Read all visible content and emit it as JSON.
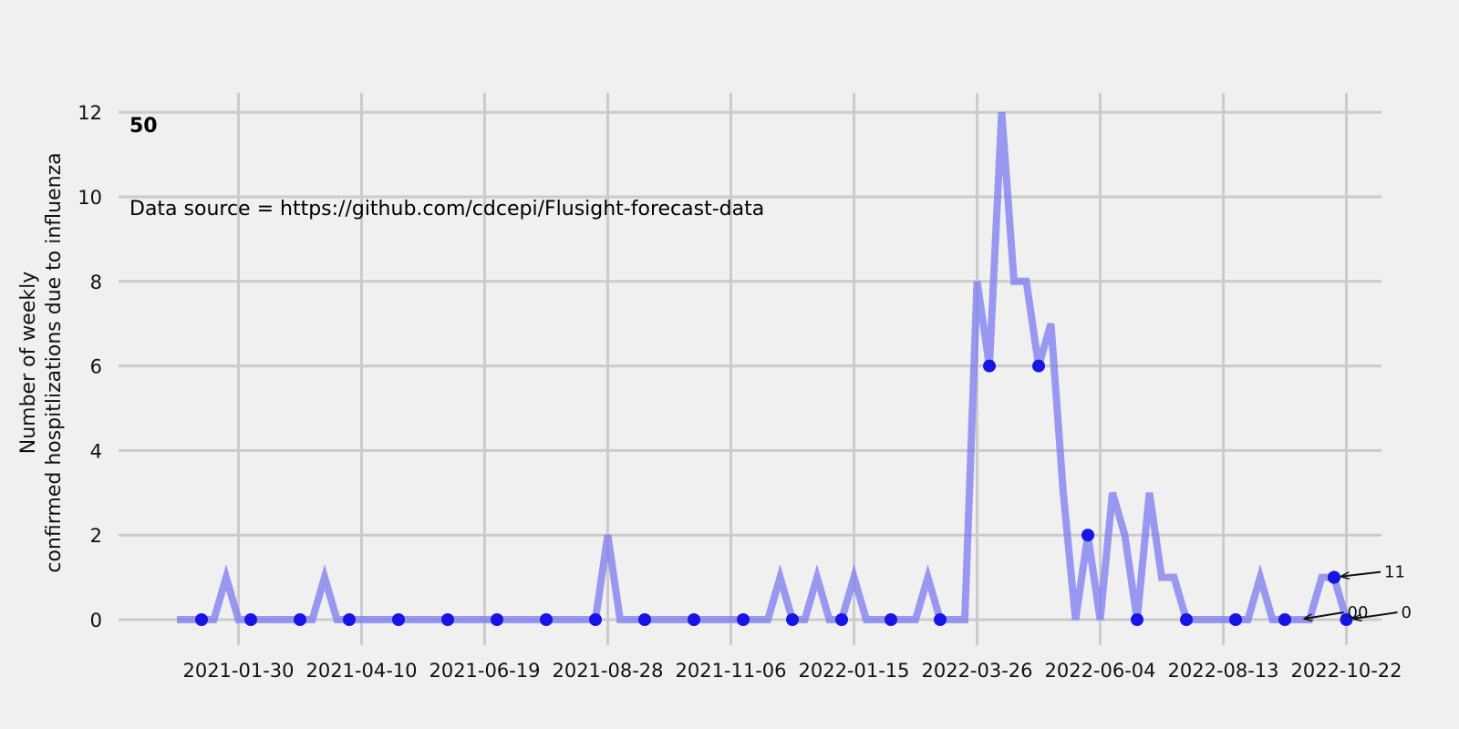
{
  "chart_data": {
    "type": "line",
    "panel_label": "50",
    "source_note": "Data source = https://github.com/cdcepi/Flusight-forecast-data",
    "ylabel_lines": [
      "Number of weekly",
      "confirmed hospitlizations due to influenza"
    ],
    "xlabel": "",
    "ylim": [
      -0.5,
      12.5
    ],
    "yticks": [
      0,
      2,
      4,
      6,
      8,
      10,
      12
    ],
    "grid": true,
    "x_start": "2020-12-26",
    "x_end": "2022-10-29",
    "xticks": [
      "2021-01-30",
      "2021-04-10",
      "2021-06-19",
      "2021-08-28",
      "2021-11-06",
      "2022-01-15",
      "2022-03-26",
      "2022-06-04",
      "2022-08-13",
      "2022-10-22"
    ],
    "line_color": "#7b7bf0",
    "marker_color": "#1515e6",
    "series": [
      {
        "values": [
          0,
          0,
          0,
          0,
          1,
          0,
          0,
          0,
          0,
          0,
          0,
          0,
          1,
          0,
          0,
          0,
          0,
          0,
          0,
          0,
          0,
          0,
          0,
          0,
          0,
          0,
          0,
          0,
          0,
          0,
          0,
          0,
          0,
          0,
          0,
          2,
          0,
          0,
          0,
          0,
          0,
          0,
          0,
          0,
          0,
          0,
          0,
          0,
          0,
          1,
          0,
          0,
          1,
          0,
          0,
          1,
          0,
          0,
          0,
          0,
          0,
          1,
          0,
          0,
          0,
          8,
          6,
          12,
          8,
          8,
          6,
          7,
          3,
          0,
          2,
          0,
          3,
          2,
          0,
          3,
          1,
          1,
          0,
          0,
          0,
          0,
          0,
          0,
          1,
          0,
          0,
          0,
          0,
          1,
          1,
          0
        ],
        "markers_every": 4,
        "marker_offset": 2
      }
    ],
    "annotations": [
      {
        "text": "11",
        "point_index": 94
      },
      {
        "text": "00",
        "point_index": 91
      },
      {
        "text": "0",
        "point_index": 95
      }
    ]
  }
}
